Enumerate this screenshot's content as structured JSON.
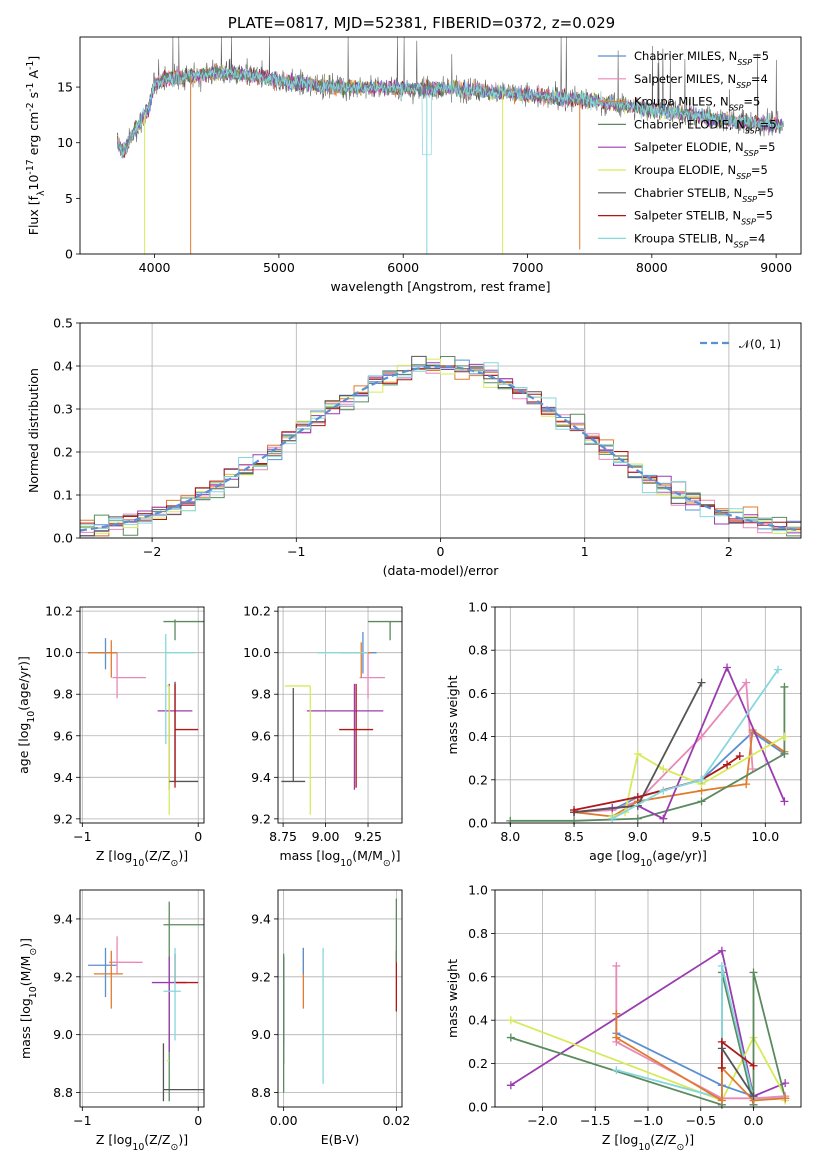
{
  "colors": [
    "#5a8fd4",
    "#e889b9",
    "#e07b2e",
    "#5b8a5e",
    "#9b3bb0",
    "#d7ea5b",
    "#555555",
    "#b01818",
    "#87d7dc"
  ],
  "chart_data": [
    {
      "id": "spectrum",
      "type": "line",
      "title": "PLATE=0817, MJD=52381, FIBERID=0372, z=0.029",
      "xlabel": "wavelength [Angstrom, rest frame]",
      "ylabel": "Flux [f$_\\lambda$10$^{-17}$ erg cm$^{-2}$ s$^{-1}$ A$^{-1}$]",
      "xlim": [
        3400,
        9200
      ],
      "ylim": [
        0,
        19.5
      ],
      "xticks": [
        4000,
        5000,
        6000,
        7000,
        8000,
        9000
      ],
      "yticks": [
        0,
        5,
        10,
        15
      ],
      "grid": false,
      "legend_position": "top-right",
      "legend": [
        {
          "name": "Chabrier MILES",
          "nssp": "5"
        },
        {
          "name": "Salpeter MILES",
          "nssp": "4"
        },
        {
          "name": "Kroupa MILES",
          "nssp": "5"
        },
        {
          "name": "Chabrier ELODIE",
          "nssp": "5"
        },
        {
          "name": "Salpeter ELODIE",
          "nssp": "5"
        },
        {
          "name": "Kroupa ELODIE",
          "nssp": "5"
        },
        {
          "name": "Chabrier STELIB",
          "nssp": "5"
        },
        {
          "name": "Salpeter STELIB",
          "nssp": "5"
        },
        {
          "name": "Kroupa STELIB",
          "nssp": "4"
        }
      ],
      "continuum": [
        [
          3700,
          10.0
        ],
        [
          3750,
          9.2
        ],
        [
          3850,
          11.3
        ],
        [
          3950,
          13.0
        ],
        [
          4000,
          15.3
        ],
        [
          4100,
          15.8
        ],
        [
          4300,
          16.0
        ],
        [
          4500,
          16.3
        ],
        [
          4800,
          16.0
        ],
        [
          5000,
          15.6
        ],
        [
          5200,
          15.3
        ],
        [
          5500,
          15.0
        ],
        [
          6000,
          14.9
        ],
        [
          6500,
          14.8
        ],
        [
          7000,
          14.3
        ],
        [
          7500,
          13.8
        ],
        [
          8000,
          13.0
        ],
        [
          8500,
          12.2
        ],
        [
          8800,
          11.8
        ],
        [
          9050,
          11.6
        ]
      ],
      "drops": [
        {
          "x": 3920,
          "y": 0,
          "series": 5
        },
        {
          "x": 4290,
          "y": 0,
          "series": 2
        },
        {
          "x": 6190,
          "y": 0,
          "series": 8
        },
        {
          "x": 6800,
          "y": 0,
          "series": 5
        },
        {
          "x": 7420,
          "y": 0.4,
          "series": 2
        }
      ]
    },
    {
      "id": "residuals",
      "type": "line",
      "xlabel": "(data-model)/error",
      "ylabel": "Normed distribution",
      "xlim": [
        -2.5,
        2.5
      ],
      "ylim": [
        0,
        0.5
      ],
      "xticks": [
        -2,
        -1,
        0,
        1,
        2
      ],
      "yticks": [
        0.0,
        0.1,
        0.2,
        0.3,
        0.4,
        0.5
      ],
      "grid": true,
      "legend_position": "top-right",
      "legend": [
        {
          "name": "$\\mathcal{N}(0,1)$",
          "style": "dashed"
        }
      ],
      "bin_width": 0.1
    },
    {
      "id": "age-Z",
      "type": "scatter",
      "xlabel": "Z [log$_{10}$($Z/Z_\\odot$)]",
      "ylabel": "age  [log$_{10}$($age/yr$)]",
      "xlim": [
        -1.02,
        0.05
      ],
      "ylim": [
        9.18,
        10.22
      ],
      "xticks": [
        -1,
        0
      ],
      "yticks": [
        9.2,
        9.4,
        9.6,
        9.8,
        10.0,
        10.2
      ],
      "grid": true,
      "points": [
        {
          "x": -0.8,
          "y": 10.0,
          "xerr": [
            0.15,
            0.1
          ],
          "yerr": [
            0.08,
            0.07
          ],
          "series": 0
        },
        {
          "x": -0.7,
          "y": 9.88,
          "xerr": [
            0.04,
            0.25
          ],
          "yerr": [
            0.1,
            0.12
          ],
          "series": 1
        },
        {
          "x": -0.75,
          "y": 10.0,
          "xerr": [
            0.2,
            0.05
          ],
          "yerr": [
            0.12,
            0.06
          ],
          "series": 2
        },
        {
          "x": -0.25,
          "y": 10.15,
          "xerr": [
            0.05,
            0.3
          ],
          "yerr": [
            0.0,
            0.0
          ],
          "series": 3
        },
        {
          "x": -0.2,
          "y": 10.1,
          "xerr": [
            0.0,
            0.0
          ],
          "yerr": [
            0.04,
            0.06
          ],
          "series": 3
        },
        {
          "x": -0.25,
          "y": 9.72,
          "xerr": [
            0.1,
            0.2
          ],
          "yerr": [
            0.38,
            0.13
          ],
          "series": 4
        },
        {
          "x": -0.25,
          "y": 9.84,
          "xerr": [
            0.02,
            0.0
          ],
          "yerr": [
            0.62,
            0.0
          ],
          "series": 5
        },
        {
          "x": -0.2,
          "y": 9.38,
          "xerr": [
            0.05,
            0.2
          ],
          "yerr": [
            0.0,
            0.48
          ],
          "series": 6
        },
        {
          "x": -0.2,
          "y": 9.63,
          "xerr": [
            0.0,
            0.2
          ],
          "yerr": [
            0.28,
            0.22
          ],
          "series": 7
        },
        {
          "x": -0.28,
          "y": 10.0,
          "xerr": [
            0.0,
            0.25
          ],
          "yerr": [
            0.44,
            0.09
          ],
          "series": 8
        }
      ]
    },
    {
      "id": "age-mass",
      "type": "scatter",
      "xlabel": "mass [log$_{10}$($M/M_\\odot$)]",
      "xlim": [
        8.72,
        9.45
      ],
      "ylim": [
        9.18,
        10.22
      ],
      "xticks": [
        8.75,
        9.0,
        9.25
      ],
      "yticks": [
        9.2,
        9.4,
        9.6,
        9.8,
        10.0,
        10.2
      ],
      "grid": true,
      "points": [
        {
          "x": 9.22,
          "y": 10.0,
          "xerr": [
            0.02,
            0.08
          ],
          "yerr": [
            0.1,
            0.1
          ],
          "series": 0
        },
        {
          "x": 9.25,
          "y": 9.88,
          "xerr": [
            0.05,
            0.1
          ],
          "yerr": [
            0.1,
            0.12
          ],
          "series": 1
        },
        {
          "x": 9.21,
          "y": 10.0,
          "xerr": [
            0.12,
            0.06
          ],
          "yerr": [
            0.12,
            0.05
          ],
          "series": 2
        },
        {
          "x": 9.38,
          "y": 10.15,
          "xerr": [
            0.13,
            0.13
          ],
          "yerr": [
            0.09,
            0.0
          ],
          "series": 3
        },
        {
          "x": 9.17,
          "y": 9.72,
          "xerr": [
            0.28,
            0.17
          ],
          "yerr": [
            0.38,
            0.13
          ],
          "series": 4
        },
        {
          "x": 8.91,
          "y": 9.84,
          "xerr": [
            0.15,
            0.0
          ],
          "yerr": [
            0.62,
            0.0
          ],
          "series": 5
        },
        {
          "x": 8.81,
          "y": 9.38,
          "xerr": [
            0.07,
            0.07
          ],
          "yerr": [
            0.0,
            0.45
          ],
          "series": 6
        },
        {
          "x": 9.18,
          "y": 9.63,
          "xerr": [
            0.1,
            0.1
          ],
          "yerr": [
            0.28,
            0.22
          ],
          "series": 7
        },
        {
          "x": 9.15,
          "y": 10.0,
          "xerr": [
            0.2,
            0.1
          ],
          "yerr": [
            0.0,
            0.0
          ],
          "series": 8
        }
      ]
    },
    {
      "id": "mass-weight-age",
      "type": "line",
      "xlabel": "age  [log$_{10}$($age/yr$)]",
      "ylabel": "mass weight",
      "xlim": [
        7.88,
        10.28
      ],
      "ylim": [
        0,
        1.0
      ],
      "xticks": [
        8.0,
        8.5,
        9.0,
        9.5,
        10.0
      ],
      "yticks": [
        0.0,
        0.2,
        0.4,
        0.6,
        0.8,
        1.0
      ],
      "grid": true,
      "series": [
        {
          "series": 0,
          "x": [
            8.5,
            8.8,
            9.0,
            9.5,
            9.9,
            10.15
          ],
          "y": [
            0.05,
            0.06,
            0.12,
            0.2,
            0.42,
            0.32
          ]
        },
        {
          "series": 1,
          "x": [
            8.5,
            8.8,
            9.0,
            9.5,
            9.85,
            9.9
          ],
          "y": [
            0.05,
            0.06,
            0.1,
            0.4,
            0.65,
            0.25
          ]
        },
        {
          "series": 2,
          "x": [
            8.5,
            8.8,
            9.0,
            9.5,
            9.85,
            9.9,
            10.15
          ],
          "y": [
            0.05,
            0.03,
            0.1,
            0.15,
            0.18,
            0.43,
            0.33
          ]
        },
        {
          "series": 3,
          "x": [
            8.0,
            8.5,
            9.0,
            9.5,
            10.15,
            10.15
          ],
          "y": [
            0.01,
            0.01,
            0.02,
            0.1,
            0.32,
            0.63
          ]
        },
        {
          "series": 4,
          "x": [
            8.5,
            8.8,
            9.0,
            9.2,
            9.7,
            10.15
          ],
          "y": [
            0.05,
            0.07,
            0.08,
            0.02,
            0.72,
            0.1
          ]
        },
        {
          "series": 5,
          "x": [
            8.8,
            8.9,
            9.0,
            9.2,
            9.5,
            10.15
          ],
          "y": [
            0.03,
            0.05,
            0.32,
            0.25,
            0.18,
            0.4
          ]
        },
        {
          "series": 6,
          "x": [
            8.5,
            9.0,
            9.5
          ],
          "y": [
            0.05,
            0.08,
            0.65
          ]
        },
        {
          "series": 7,
          "x": [
            8.5,
            9.0,
            9.5,
            9.7,
            9.8
          ],
          "y": [
            0.06,
            0.12,
            0.2,
            0.27,
            0.31
          ]
        },
        {
          "series": 8,
          "x": [
            8.8,
            9.2,
            9.5,
            10.1
          ],
          "y": [
            0.02,
            0.15,
            0.2,
            0.71
          ]
        }
      ]
    },
    {
      "id": "mass-Z",
      "type": "scatter",
      "xlabel": "Z [log$_{10}$($Z/Z_\\odot$)]",
      "ylabel": "mass [log$_{10}$($M/M_\\odot$)]",
      "xlim": [
        -1.02,
        0.05
      ],
      "ylim": [
        8.75,
        9.5
      ],
      "xticks": [
        -1,
        0
      ],
      "yticks": [
        8.8,
        9.0,
        9.2,
        9.4
      ],
      "grid": true,
      "points": [
        {
          "x": -0.8,
          "y": 9.24,
          "xerr": [
            0.15,
            0.1
          ],
          "yerr": [
            0.11,
            0.06
          ],
          "series": 0
        },
        {
          "x": -0.7,
          "y": 9.25,
          "xerr": [
            0.07,
            0.22
          ],
          "yerr": [
            0.04,
            0.09
          ],
          "series": 1
        },
        {
          "x": -0.75,
          "y": 9.21,
          "xerr": [
            0.15,
            0.1
          ],
          "yerr": [
            0.12,
            0.08
          ],
          "series": 2
        },
        {
          "x": -0.25,
          "y": 9.38,
          "xerr": [
            0.05,
            0.3
          ],
          "yerr": [
            0.61,
            0.08
          ],
          "series": 3
        },
        {
          "x": -0.25,
          "y": 9.18,
          "xerr": [
            0.15,
            0.15
          ],
          "yerr": [
            0.24,
            0.09
          ],
          "series": 4
        },
        {
          "x": -0.25,
          "y": 8.91,
          "xerr": [
            0.02,
            0.0
          ],
          "yerr": [
            0.0,
            0.0
          ],
          "series": 5
        },
        {
          "x": -0.3,
          "y": 8.81,
          "xerr": [
            0.0,
            0.4
          ],
          "yerr": [
            0.04,
            0.16
          ],
          "series": 6
        },
        {
          "x": -0.2,
          "y": 9.18,
          "xerr": [
            0.0,
            0.2
          ],
          "yerr": [
            0.0,
            0.1
          ],
          "series": 7
        },
        {
          "x": -0.2,
          "y": 9.15,
          "xerr": [
            0.1,
            0.05
          ],
          "yerr": [
            0.17,
            0.15
          ],
          "series": 8
        }
      ]
    },
    {
      "id": "mass-EBV",
      "type": "scatter",
      "xlabel": "E(B-V)",
      "xlim": [
        -0.001,
        0.021
      ],
      "ylim": [
        8.75,
        9.5
      ],
      "xticks": [
        0.0,
        0.02
      ],
      "yticks": [
        8.8,
        9.0,
        9.2,
        9.4
      ],
      "grid": true,
      "points": [
        {
          "x": 0.0,
          "y": 9.1,
          "yerr": [
            0.13,
            0.17
          ],
          "series": 6
        },
        {
          "x": 0.0,
          "y": 9.05,
          "yerr": [
            0.15,
            0.22
          ],
          "series": 4
        },
        {
          "x": 0.0,
          "y": 8.9,
          "yerr": [
            0.1,
            0.38
          ],
          "series": 3
        },
        {
          "x": 0.0035,
          "y": 9.2,
          "yerr": [
            0.11,
            0.1
          ],
          "series": 2
        },
        {
          "x": 0.0035,
          "y": 9.25,
          "yerr": [
            0.04,
            0.05
          ],
          "series": 0
        },
        {
          "x": 0.007,
          "y": 9.05,
          "yerr": [
            0.22,
            0.25
          ],
          "series": 8
        },
        {
          "x": 0.02,
          "y": 9.17,
          "yerr": [
            0.09,
            0.12
          ],
          "series": 7
        },
        {
          "x": 0.02,
          "y": 9.35,
          "yerr": [
            0.1,
            0.12
          ],
          "series": 3
        }
      ]
    },
    {
      "id": "mass-weight-Z",
      "type": "line",
      "xlabel": "Z [log$_{10}$($Z/Z_\\odot$)]",
      "ylabel": "mass weight",
      "xlim": [
        -2.45,
        0.45
      ],
      "ylim": [
        0,
        1.0
      ],
      "xticks": [
        -2.0,
        -1.5,
        -1.0,
        -0.5,
        0.0
      ],
      "yticks": [
        0.0,
        0.2,
        0.4,
        0.6,
        0.8,
        1.0
      ],
      "grid": true,
      "series": [
        {
          "series": 4,
          "x": [
            -2.3,
            -0.3,
            0.0,
            0.3
          ],
          "y": [
            0.1,
            0.72,
            0.05,
            0.11
          ]
        },
        {
          "series": 5,
          "x": [
            -2.3,
            -0.3,
            0.0,
            0.3,
            0.3
          ],
          "y": [
            0.4,
            0.03,
            0.32,
            0.05,
            0.03
          ]
        },
        {
          "series": 3,
          "x": [
            -2.3,
            -0.3,
            -0.3,
            0.0,
            0.0,
            0.3
          ],
          "y": [
            0.32,
            0.01,
            0.62,
            0.01,
            0.62,
            0.04
          ]
        },
        {
          "series": 8,
          "x": [
            -1.3,
            -0.3,
            -0.3,
            0.0,
            0.3
          ],
          "y": [
            0.17,
            0.04,
            0.65,
            0.04,
            0.04
          ]
        },
        {
          "series": 1,
          "x": [
            -1.3,
            -1.3,
            -0.3,
            0.0,
            0.3
          ],
          "y": [
            0.65,
            0.3,
            0.04,
            0.04,
            0.05
          ]
        },
        {
          "series": 0,
          "x": [
            -1.3,
            -0.3,
            0.0
          ],
          "y": [
            0.34,
            0.1,
            0.05
          ]
        },
        {
          "series": 2,
          "x": [
            -1.3,
            -1.3,
            -0.3,
            -0.3,
            0.0,
            0.3
          ],
          "y": [
            0.43,
            0.32,
            0.03,
            0.18,
            0.03,
            0.04
          ]
        },
        {
          "series": 7,
          "x": [
            -0.3,
            -0.3,
            0.0
          ],
          "y": [
            0.18,
            0.3,
            0.19
          ]
        },
        {
          "series": 6,
          "x": [
            -0.3,
            0.0
          ],
          "y": [
            0.27,
            0.05
          ]
        }
      ]
    }
  ]
}
